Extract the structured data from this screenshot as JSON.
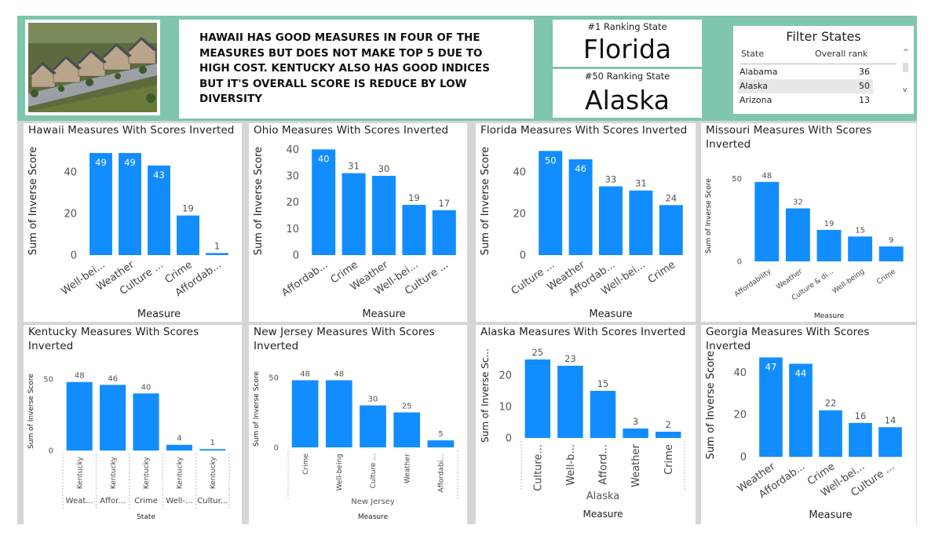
{
  "headline": "HAWAII HAS GOOD MEASURES IN FOUR OF THE MEASURES BUT DOES NOT MAKE TOP 5 DUE TO HIGH COST.  KENTUCKY ALSO HAS GOOD INDICES BUT IT'S OVERALL SCORE IS REDUCE BY LOW DIVERSITY",
  "kpi": {
    "top_label": "#1 Ranking State",
    "top_value": "Florida",
    "bottom_label": "#50 Ranking State",
    "bottom_value": "Alaska"
  },
  "filter": {
    "title": "Filter States",
    "col_state": "State",
    "col_rank": "Overall rank",
    "rows": [
      {
        "state": "Alabama",
        "rank": "36"
      },
      {
        "state": "Alaska",
        "rank": "50"
      },
      {
        "state": "Arizona",
        "rank": "13"
      }
    ],
    "scroll_up": "^",
    "scroll_down": "v"
  },
  "colors": {
    "bar": "#118dff",
    "band": "#7fc6ad",
    "canvas": "#d6d6d6"
  },
  "chart_data": [
    {
      "title": "Hawaii Measures With Scores Inverted",
      "type": "bar",
      "categories": [
        "Well-bei...",
        "Weather",
        "Culture ...",
        "Crime",
        "Affordab..."
      ],
      "values": [
        49,
        49,
        43,
        19,
        1
      ],
      "yticks": [
        "0",
        "20",
        "40"
      ],
      "ylim": [
        0,
        52
      ],
      "ylabel": "Sum of Inverse Score",
      "xlabel": "Measure"
    },
    {
      "title": "Ohio Measures With Scores Inverted",
      "type": "bar",
      "categories": [
        "Affordab...",
        "Crime",
        "Weather",
        "Well-bei...",
        "Culture ..."
      ],
      "values": [
        40,
        31,
        30,
        19,
        17
      ],
      "yticks": [
        "0",
        "10",
        "20",
        "30",
        "40"
      ],
      "ylim": [
        0,
        41
      ],
      "ylabel": "Sum of Inverse Score",
      "xlabel": "Measure"
    },
    {
      "title": "Florida Measures With Scores Inverted",
      "type": "bar",
      "categories": [
        "Culture ...",
        "Weather",
        "Affordab...",
        "Well-bei...",
        "Crime"
      ],
      "values": [
        50,
        46,
        33,
        31,
        24
      ],
      "yticks": [
        "0",
        "20",
        "40"
      ],
      "ylim": [
        0,
        52
      ],
      "ylabel": "Sum of Inverse Score",
      "xlabel": "Measure"
    },
    {
      "title": "Missouri Measures With Scores Inverted",
      "type": "bar",
      "categories": [
        "Affordability",
        "Weather",
        "Culture & di...",
        "Well-being",
        "Crime"
      ],
      "values": [
        48,
        32,
        19,
        15,
        9
      ],
      "yticks": [
        "0",
        "50"
      ],
      "ylim": [
        0,
        55
      ],
      "ylabel": "Sum of Inverse Score",
      "xlabel": "Measure"
    },
    {
      "title": "Kentucky Measures With Scores Inverted",
      "type": "bar",
      "categories": [
        "Kentucky",
        "Kentucky",
        "Kentucky",
        "Kentucky",
        "Kentucky"
      ],
      "groups": [
        "Weat...",
        "Affor...",
        "Crime",
        "Well-...",
        "Cultur..."
      ],
      "values": [
        48,
        46,
        40,
        4,
        1
      ],
      "yticks": [
        "0",
        "50"
      ],
      "ylim": [
        0,
        55
      ],
      "ylabel": "Sum of Inverse Score",
      "xlabel": "State"
    },
    {
      "title": "New Jersey Measures With Scores Inverted",
      "type": "bar",
      "categories": [
        "Crime",
        "Well-being",
        "Culture ...",
        "Weather",
        "Affordabi..."
      ],
      "group_label": "New Jersey",
      "values": [
        48,
        48,
        30,
        25,
        5
      ],
      "yticks": [
        "0",
        "50"
      ],
      "ylim": [
        0,
        55
      ],
      "ylabel": "Sum of Inverse Score",
      "xlabel": "Measure"
    },
    {
      "title": "Alaska Measures With Scores Inverted",
      "type": "bar",
      "categories": [
        "Culture...",
        "Well-b...",
        "Afford...",
        "Weather",
        "Crime"
      ],
      "group_label": "Alaska",
      "values": [
        25,
        23,
        15,
        3,
        2
      ],
      "yticks": [
        "0",
        "10",
        "20"
      ],
      "ylim": [
        0,
        27
      ],
      "ylabel": "Sum of Inverse Sc...",
      "xlabel": "Measure"
    },
    {
      "title": "Georgia Measures With Scores Inverted",
      "type": "bar",
      "categories": [
        "Weather",
        "Affordab...",
        "Crime",
        "Well-bei...",
        "Culture ..."
      ],
      "values": [
        47,
        44,
        22,
        16,
        14
      ],
      "yticks": [
        "0",
        "20",
        "40"
      ],
      "ylim": [
        0,
        49
      ],
      "ylabel": "Sum of Inverse Score",
      "xlabel": "Measure"
    }
  ]
}
